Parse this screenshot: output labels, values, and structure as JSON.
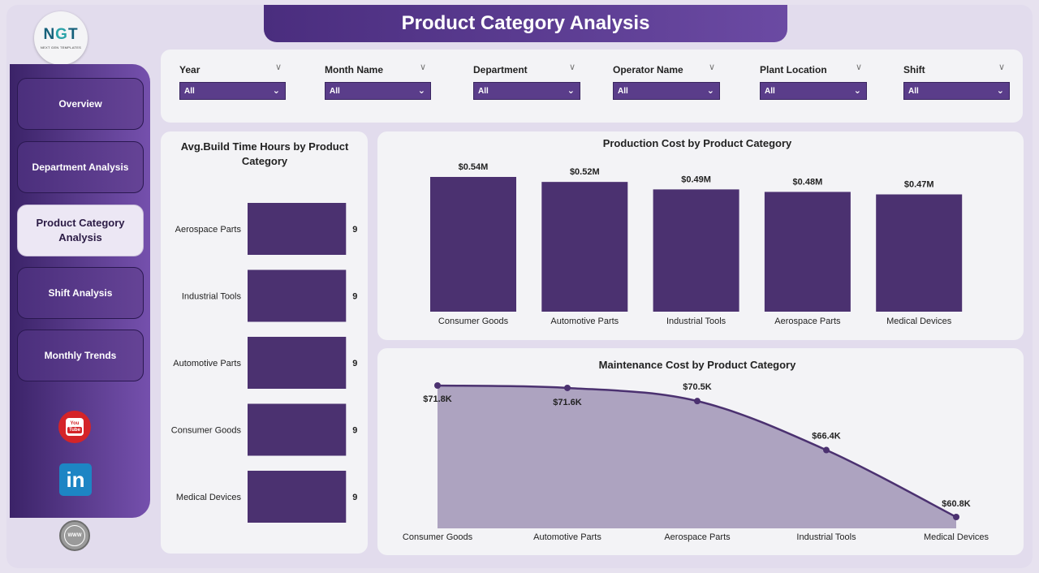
{
  "header": {
    "title": "Product Category Analysis"
  },
  "logo": {
    "mark": "NGT",
    "tagline": "NEXT GEN TEMPLATES"
  },
  "nav": [
    {
      "label": "Overview",
      "active": false
    },
    {
      "label": "Department Analysis",
      "active": false
    },
    {
      "label": "Product Category Analysis",
      "active": true
    },
    {
      "label": "Shift Analysis",
      "active": false
    },
    {
      "label": "Monthly Trends",
      "active": false
    }
  ],
  "social": {
    "youtube_top": "You",
    "youtube_bottom": "Tube",
    "linkedin": "in",
    "website": "WWW"
  },
  "filters": [
    {
      "label": "Year",
      "value": "All"
    },
    {
      "label": "Month Name",
      "value": "All"
    },
    {
      "label": "Department",
      "value": "All"
    },
    {
      "label": "Operator Name",
      "value": "All"
    },
    {
      "label": "Plant Location",
      "value": "All"
    },
    {
      "label": "Shift",
      "value": "All"
    }
  ],
  "colors": {
    "accent": "#4b3170",
    "area_fill": "#ada3c0",
    "line": "#4b3170"
  },
  "chart_data": [
    {
      "type": "bar",
      "orientation": "horizontal",
      "title": "Avg.Build Time Hours by Product Category",
      "categories": [
        "Aerospace Parts",
        "Industrial Tools",
        "Automotive Parts",
        "Consumer Goods",
        "Medical Devices"
      ],
      "values": [
        9,
        9,
        9,
        9,
        9
      ],
      "value_labels": [
        "9",
        "9",
        "9",
        "9",
        "9"
      ]
    },
    {
      "type": "bar",
      "title": "Production Cost by Product Category",
      "categories": [
        "Consumer Goods",
        "Automotive Parts",
        "Industrial Tools",
        "Aerospace Parts",
        "Medical Devices"
      ],
      "values": [
        0.54,
        0.52,
        0.49,
        0.48,
        0.47
      ],
      "value_labels": [
        "$0.54M",
        "$0.52M",
        "$0.49M",
        "$0.48M",
        "$0.47M"
      ],
      "unit": "M"
    },
    {
      "type": "area",
      "title": "Maintenance Cost by Product Category",
      "categories": [
        "Consumer Goods",
        "Automotive Parts",
        "Aerospace Parts",
        "Industrial Tools",
        "Medical Devices"
      ],
      "values": [
        71.8,
        71.6,
        70.5,
        66.4,
        60.8
      ],
      "value_labels": [
        "$71.8K",
        "$71.6K",
        "$70.5K",
        "$66.4K",
        "$60.8K"
      ],
      "unit": "K"
    }
  ]
}
